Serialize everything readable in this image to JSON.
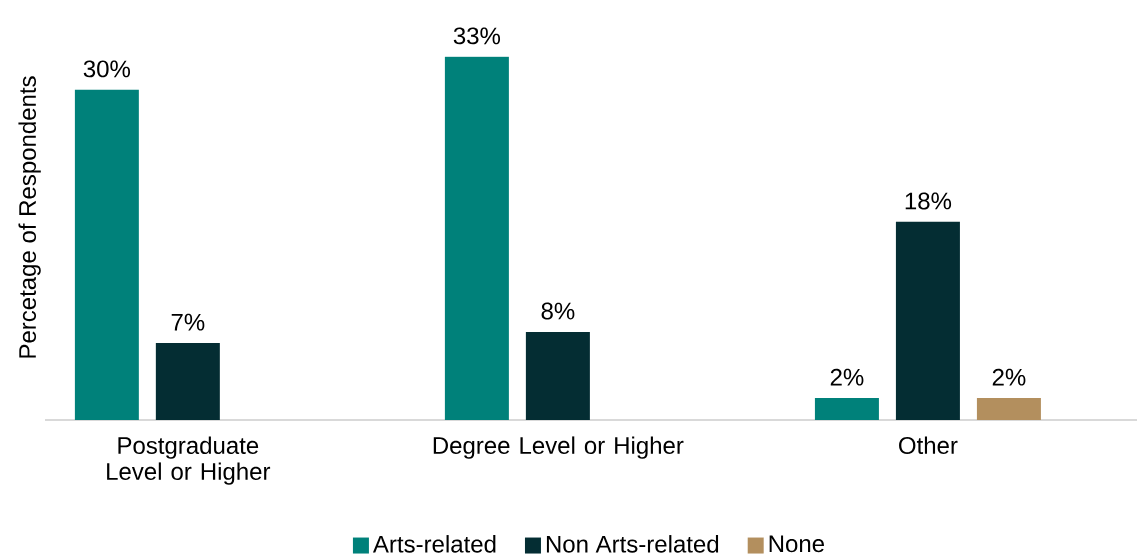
{
  "chart_data": {
    "type": "bar",
    "ylabel": "Percetage of Respondents",
    "categories": [
      "Postgraduate Level or Higher",
      "Degree Level or Higher",
      "Other"
    ],
    "series": [
      {
        "name": "Arts-related",
        "color": "#00817a",
        "values": [
          30,
          33,
          2
        ],
        "value_labels": [
          "30%",
          "33%",
          "2%"
        ]
      },
      {
        "name": "Non Arts-related",
        "color": "#042d33",
        "values": [
          7,
          8,
          18
        ],
        "value_labels": [
          "7%",
          "8%",
          "18%"
        ]
      },
      {
        "name": "None",
        "color": "#b38f5e",
        "values": [
          null,
          null,
          2
        ],
        "value_labels": [
          null,
          null,
          "2%"
        ]
      }
    ],
    "legend": "bottom"
  }
}
